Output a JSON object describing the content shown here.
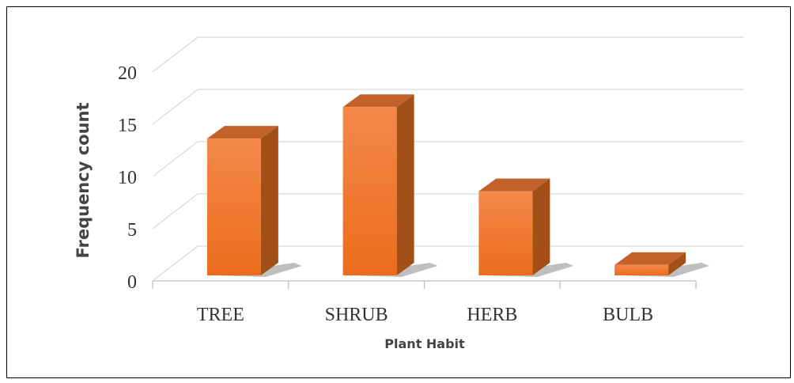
{
  "chart_data": {
    "type": "bar3d",
    "categories": [
      "TREE",
      "SHRUB",
      "HERB",
      "BULB"
    ],
    "values": [
      13,
      16,
      8,
      1
    ],
    "color": "#f07a2a",
    "ylim": [
      0,
      20
    ],
    "yticks": [
      0,
      5,
      10,
      15,
      20
    ],
    "grid": true,
    "xlabel": "Plant Habit",
    "ylabel": "Frequency count"
  }
}
